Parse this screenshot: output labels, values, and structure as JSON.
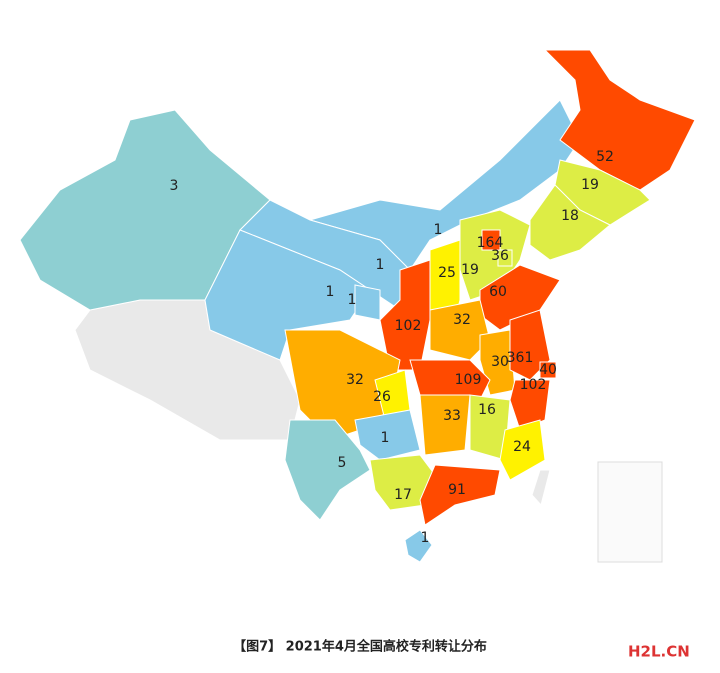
{
  "title": "【图7】 2021年4月全国高校专利转让分布",
  "watermark": "H2L.CN",
  "regions": [
    {
      "value": 3,
      "color": "#8ecfd2"
    },
    {
      "value": 1,
      "color": "#87c9e8"
    },
    {
      "value": 1,
      "color": "#87c9e8"
    },
    {
      "value": 1,
      "color": "#87c9e8"
    },
    {
      "value": 1,
      "color": "#87c9e8"
    },
    {
      "value": 52,
      "color": "#ff4a00"
    },
    {
      "value": 19,
      "color": "#dded45"
    },
    {
      "value": 18,
      "color": "#dded45"
    },
    {
      "value": 19,
      "color": "#dded45"
    },
    {
      "value": 25,
      "color": "#fff200"
    },
    {
      "value": 164,
      "color": "#ff4a00"
    },
    {
      "value": 36,
      "color": "#dded45"
    },
    {
      "value": 60,
      "color": "#ff4a00"
    },
    {
      "value": 102,
      "color": "#ff4a00"
    },
    {
      "value": 32,
      "color": "#ffad00"
    },
    {
      "value": 30,
      "color": "#ffad00"
    },
    {
      "value": 361,
      "color": "#ff4a00"
    },
    {
      "value": 40,
      "color": "#ff4a00"
    },
    {
      "value": 102,
      "color": "#ff4a00"
    },
    {
      "value": 109,
      "color": "#ff4a00"
    },
    {
      "value": 32,
      "color": "#ffad00"
    },
    {
      "value": 26,
      "color": "#fff200"
    },
    {
      "value": 33,
      "color": "#ffad00"
    },
    {
      "value": 16,
      "color": "#dded45"
    },
    {
      "value": 24,
      "color": "#fff200"
    },
    {
      "value": 1,
      "color": "#87c9e8"
    },
    {
      "value": 5,
      "color": "#8ecfd2"
    },
    {
      "value": 17,
      "color": "#dded45"
    },
    {
      "value": 91,
      "color": "#ff4a00"
    },
    {
      "value": 1,
      "color": "#87c9e8"
    }
  ]
}
